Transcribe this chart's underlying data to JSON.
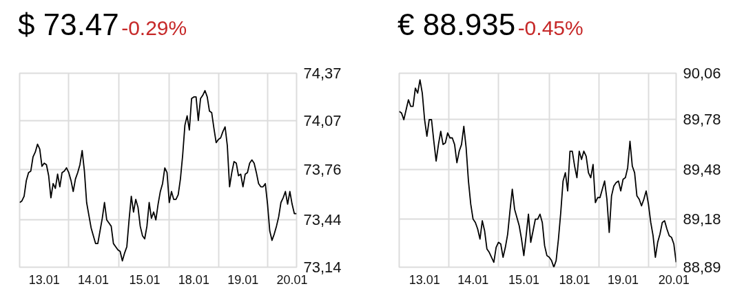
{
  "chart_data": [
    {
      "type": "line",
      "title": "$ 73.47",
      "subtitle": "-0.29%",
      "grid": true,
      "ylim": [
        73.14,
        74.37
      ],
      "categories": [
        null,
        null,
        null,
        null,
        null,
        null,
        null,
        null,
        null,
        null,
        null,
        "13.01",
        null,
        null,
        null,
        null,
        null,
        null,
        null,
        null,
        null,
        null,
        null,
        null,
        null,
        null,
        null,
        null,
        null,
        null,
        null,
        null,
        null,
        "14.01",
        null,
        null,
        null,
        null,
        null,
        null,
        null,
        null,
        null,
        null,
        null,
        null,
        null,
        null,
        null,
        null,
        null,
        null,
        null,
        null,
        null,
        null,
        "15.01",
        null,
        null,
        null,
        null,
        null,
        null,
        null,
        null,
        null,
        null,
        null,
        null,
        null,
        null,
        null,
        null,
        null,
        null,
        null,
        null,
        null,
        "18.01",
        null,
        null,
        null,
        null,
        null,
        null,
        null,
        null,
        null,
        null,
        null,
        null,
        null,
        null,
        null,
        null,
        null,
        null,
        null,
        null,
        null,
        "19.01",
        null,
        null,
        null,
        null,
        null,
        null,
        null,
        null,
        null,
        null,
        null,
        null,
        null,
        null,
        null,
        null,
        null,
        null,
        null,
        null,
        null,
        "20.01",
        null,
        null
      ],
      "yticks": [
        {
          "value": 73.14,
          "label": "73,14"
        },
        {
          "value": 73.44,
          "label": "73,44"
        },
        {
          "value": 73.76,
          "label": "73,76"
        },
        {
          "value": 74.07,
          "label": "74,07"
        },
        {
          "value": 74.37,
          "label": "74,37"
        }
      ],
      "series": [
        {
          "color": "#000000",
          "values": [
            73.55,
            73.56,
            73.59,
            73.69,
            73.74,
            73.75,
            73.84,
            73.87,
            73.92,
            73.89,
            73.78,
            73.8,
            73.79,
            73.72,
            73.58,
            73.67,
            73.64,
            73.73,
            73.65,
            73.74,
            73.75,
            73.77,
            73.74,
            73.69,
            73.62,
            73.7,
            73.74,
            73.79,
            73.88,
            73.75,
            73.55,
            73.47,
            73.39,
            73.34,
            73.29,
            73.29,
            73.37,
            73.45,
            73.55,
            73.44,
            73.42,
            73.4,
            73.29,
            73.27,
            73.25,
            73.24,
            73.18,
            73.23,
            73.27,
            73.44,
            73.59,
            73.49,
            73.57,
            73.52,
            73.4,
            73.34,
            73.32,
            73.4,
            73.55,
            73.45,
            73.49,
            73.44,
            73.54,
            73.62,
            73.67,
            73.77,
            73.74,
            73.55,
            73.62,
            73.57,
            73.57,
            73.6,
            73.7,
            73.85,
            74.04,
            74.1,
            74.01,
            74.21,
            74.22,
            74.22,
            74.07,
            74.21,
            74.23,
            74.26,
            74.22,
            74.13,
            74.12,
            74.02,
            73.93,
            73.95,
            73.96,
            74.0,
            74.03,
            73.91,
            73.65,
            73.74,
            73.81,
            73.8,
            73.72,
            73.73,
            73.65,
            73.73,
            73.74,
            73.8,
            73.82,
            73.8,
            73.74,
            73.67,
            73.65,
            73.65,
            73.67,
            73.54,
            73.37,
            73.31,
            73.35,
            73.4,
            73.46,
            73.55,
            73.58,
            73.62,
            73.54,
            73.62,
            73.54,
            73.48,
            73.48
          ]
        }
      ]
    },
    {
      "type": "line",
      "title": "€ 88.935",
      "subtitle": "-0.45%",
      "grid": true,
      "ylim": [
        88.89,
        90.06
      ],
      "categories": [
        null,
        null,
        null,
        null,
        null,
        null,
        null,
        null,
        null,
        null,
        null,
        "13.01",
        null,
        null,
        null,
        null,
        null,
        null,
        null,
        null,
        null,
        null,
        null,
        null,
        null,
        null,
        null,
        null,
        null,
        null,
        null,
        null,
        "14.01",
        null,
        null,
        null,
        null,
        null,
        null,
        null,
        null,
        null,
        null,
        null,
        null,
        null,
        null,
        null,
        null,
        null,
        null,
        null,
        null,
        null,
        "15.01",
        null,
        null,
        null,
        null,
        null,
        null,
        null,
        null,
        null,
        null,
        null,
        null,
        null,
        null,
        null,
        null,
        null,
        null,
        null,
        null,
        null,
        "18.01",
        null,
        null,
        null,
        null,
        null,
        null,
        null,
        null,
        null,
        null,
        null,
        null,
        null,
        null,
        null,
        null,
        null,
        null,
        null,
        null,
        "19.01",
        null,
        null,
        null,
        null,
        null,
        null,
        null,
        null,
        null,
        null,
        null,
        null,
        null,
        null,
        null,
        null,
        null,
        null,
        null,
        null,
        null,
        "20.01",
        null
      ],
      "yticks": [
        {
          "value": 88.89,
          "label": "88,89"
        },
        {
          "value": 89.18,
          "label": "89,18"
        },
        {
          "value": 89.48,
          "label": "89,48"
        },
        {
          "value": 89.78,
          "label": "89,78"
        },
        {
          "value": 90.06,
          "label": "90,06"
        }
      ],
      "series": [
        {
          "color": "#000000",
          "values": [
            89.83,
            89.82,
            89.78,
            89.84,
            89.9,
            89.86,
            89.86,
            89.97,
            89.94,
            90.02,
            89.94,
            89.78,
            89.68,
            89.78,
            89.78,
            89.65,
            89.53,
            89.63,
            89.71,
            89.63,
            89.64,
            89.7,
            89.67,
            89.67,
            89.63,
            89.52,
            89.59,
            89.63,
            89.74,
            89.61,
            89.41,
            89.27,
            89.18,
            89.16,
            89.12,
            89.06,
            89.17,
            89.11,
            89.0,
            88.98,
            88.95,
            88.92,
            89.01,
            89.04,
            89.03,
            88.95,
            89.01,
            89.09,
            89.23,
            89.36,
            89.24,
            89.19,
            89.14,
            89.06,
            88.96,
            89.08,
            89.21,
            89.04,
            89.11,
            89.18,
            89.18,
            89.21,
            89.16,
            89.02,
            88.96,
            88.95,
            88.93,
            88.89,
            88.93,
            89.06,
            89.22,
            89.41,
            89.46,
            89.35,
            89.59,
            89.59,
            89.5,
            89.43,
            89.59,
            89.54,
            89.59,
            89.56,
            89.46,
            89.43,
            89.51,
            89.28,
            89.31,
            89.31,
            89.36,
            89.41,
            89.3,
            89.1,
            89.32,
            89.38,
            89.4,
            89.41,
            89.35,
            89.42,
            89.43,
            89.49,
            89.65,
            89.5,
            89.46,
            89.32,
            89.3,
            89.26,
            89.3,
            89.35,
            89.27,
            89.16,
            89.08,
            88.95,
            89.04,
            89.09,
            89.16,
            89.17,
            89.12,
            89.08,
            89.07,
            89.03,
            88.92
          ]
        }
      ]
    }
  ]
}
